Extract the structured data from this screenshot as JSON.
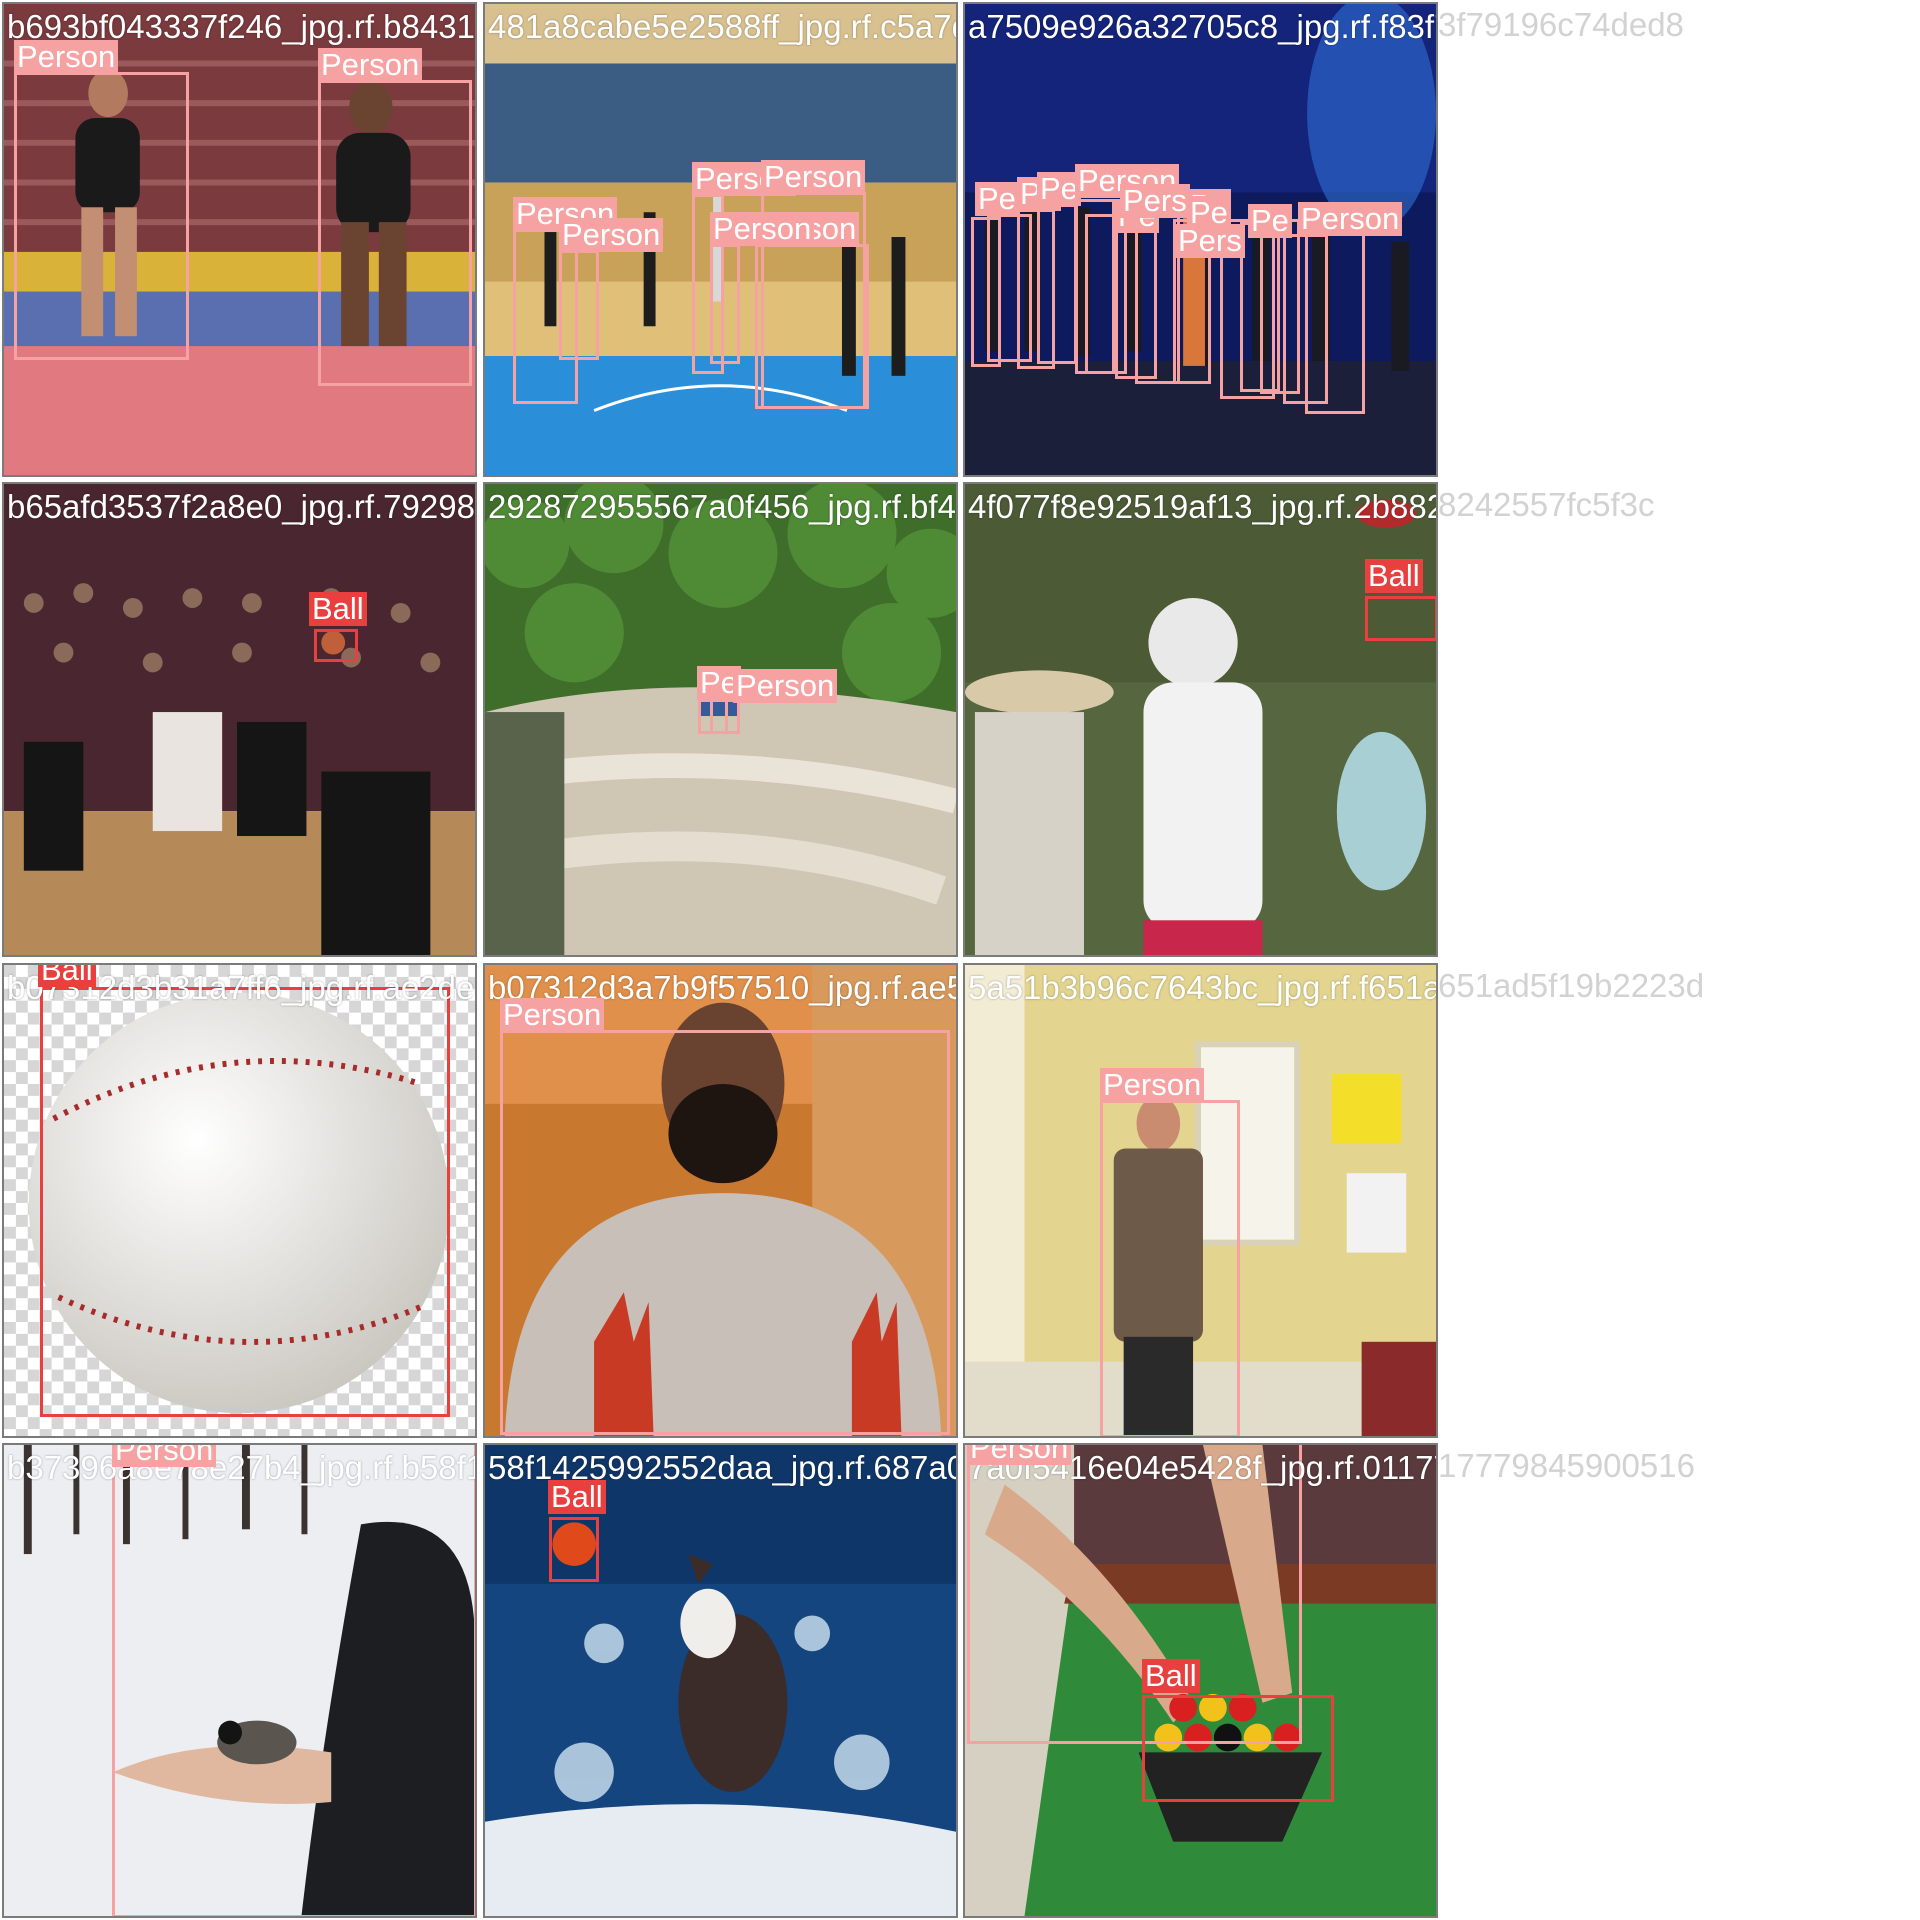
{
  "class_colors": {
    "Person": "#f6a2a2",
    "Ball": "#e8403f"
  },
  "tiles": [
    {
      "filename": "b693bf043337f246_jpg.rf.b8431a81a5e5e2588ff",
      "scene": "gymnasts-on-mat",
      "detections": [
        "Person",
        "Person"
      ]
    },
    {
      "filename": "481a8cabe5e2588ff_jpg.rf.c5a7d9e926a32705c8",
      "scene": "basketball-court-indoor",
      "detections": [
        "Person",
        "Person",
        "Person",
        "Person",
        "Person",
        "Person"
      ]
    },
    {
      "filename": "a7509e926a32705c8_jpg.rf.f83f79196c74ded8",
      "scene": "stage-performers",
      "detections": [
        "Pe",
        "Pe",
        "Pe",
        "Person",
        "Pe",
        "Pers",
        "Pe",
        "Pers",
        "Pe",
        "Pe",
        "Person"
      ]
    },
    {
      "filename": "b65afd3537f2a8e0_jpg.rf.792987295567a0f456",
      "scene": "basketball-game-crowd",
      "detections": [
        "Ball"
      ]
    },
    {
      "filename": "292872955567a0f456_jpg.rf.bf4f077f8e92519af13",
      "scene": "river-rafting",
      "detections": [
        "Pe",
        "Person"
      ]
    },
    {
      "filename": "4f077f8e92519af13_jpg.rf.2b88242557fc5f3c",
      "scene": "woman-catching-ball",
      "detections": [
        "Ball"
      ]
    },
    {
      "filename": "b07312d3b31a7ff6_jpg.rf.ae2de8_3d07c5a8",
      "scene": "baseball-closeup",
      "detections": [
        "Ball"
      ]
    },
    {
      "filename": "b07312d3a7b9f57510_jpg.rf.ae5a51b3b96c7643bc",
      "scene": "bearded-man-portrait",
      "detections": [
        "Person"
      ]
    },
    {
      "filename": "5a51b3b96c7643bc_jpg.rf.f651ad5f19b2223d",
      "scene": "man-presenting-room",
      "detections": [
        "Person"
      ]
    },
    {
      "filename": "b37396a8e78e27b4_jpg.rf.b58f1425992552daa",
      "scene": "bird-on-hand-snow",
      "detections": [
        "Person"
      ]
    },
    {
      "filename": "58f1425992552daa_jpg.rf.687a0f5416e04e5428f",
      "scene": "dog-in-water",
      "detections": [
        "Ball"
      ]
    },
    {
      "filename": "7a0f5416e04e5428f_jpg.rf.0117779845900516",
      "scene": "billiard-rack",
      "detections": [
        "Person",
        "Ball"
      ]
    }
  ]
}
